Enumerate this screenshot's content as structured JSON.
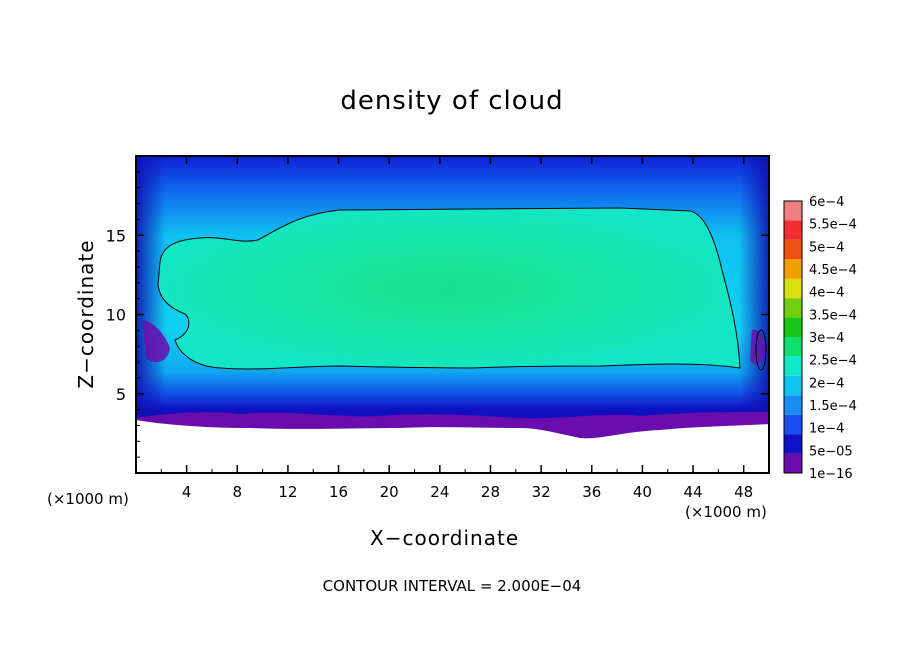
{
  "chart_data": {
    "type": "heatmap",
    "title": "density of cloud",
    "xlabel": "X−coordinate",
    "ylabel": "Z−coordinate",
    "x_unit": "(×1000 m)",
    "y_unit": "(×1000 m)",
    "xlim": [
      0,
      50
    ],
    "ylim": [
      0,
      20
    ],
    "x_ticks": [
      "4",
      "8",
      "12",
      "16",
      "20",
      "24",
      "28",
      "32",
      "36",
      "40",
      "44",
      "48"
    ],
    "y_ticks": [
      "5",
      "10",
      "15"
    ],
    "colorbar_labels": [
      "1e−16",
      "5e−05",
      "1e−4",
      "1.5e−4",
      "2e−4",
      "2.5e−4",
      "3e−4",
      "3.5e−4",
      "4e−4",
      "4.5e−4",
      "5e−4",
      "5.5e−4",
      "6e−4"
    ],
    "colorbar_values": [
      1e-16,
      5e-05,
      0.0001,
      0.00015,
      0.0002,
      0.00025,
      0.0003,
      0.00035,
      0.0004,
      0.00045,
      0.0005,
      0.00055,
      0.0006
    ],
    "colorbar_colors": [
      "#6a0dad",
      "#1010c8",
      "#1a4cf0",
      "#1a8cf0",
      "#10c4f0",
      "#10e8c8",
      "#10e070",
      "#18c818",
      "#70d010",
      "#d8e010",
      "#f0a000",
      "#f05010",
      "#f03030",
      "#f08080"
    ],
    "cloud_core_value": 0.00022,
    "contour_level": 0.0002,
    "footer": "CONTOUR INTERVAL = 2.000E−04"
  }
}
